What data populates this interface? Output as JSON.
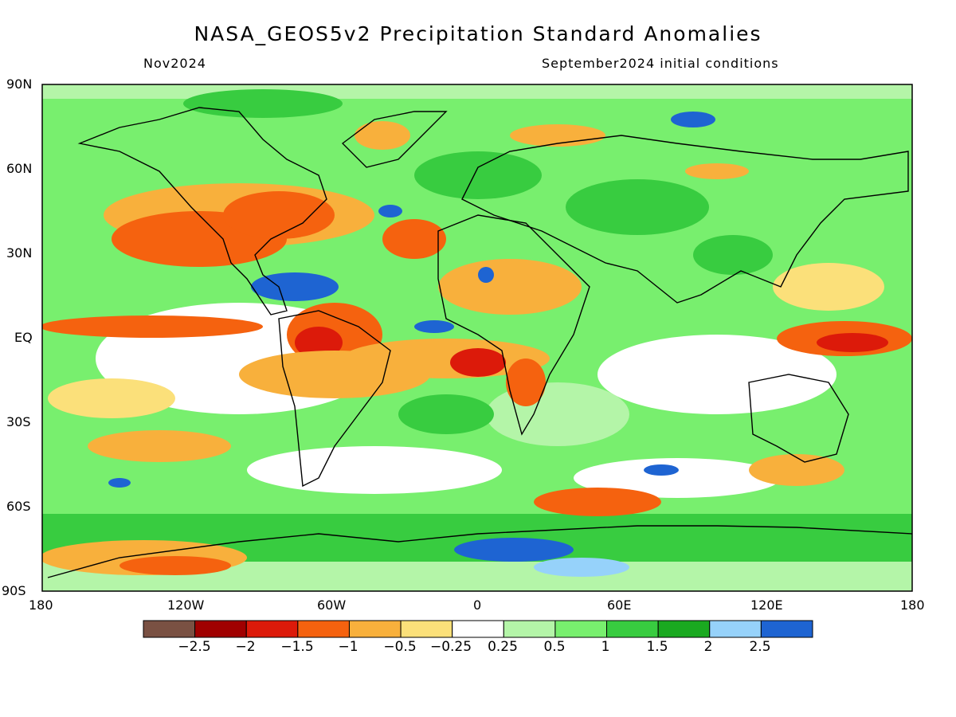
{
  "header": {
    "title": "NASA_GEOS5v2 Precipitation Standard Anomalies",
    "month": "Nov2024",
    "init": "September2024 initial conditions"
  },
  "axes": {
    "lat_labels": [
      "90N",
      "60N",
      "30N",
      "EQ",
      "30S",
      "60S",
      "90S"
    ],
    "lon_labels": [
      "180",
      "120W",
      "60W",
      "0",
      "60E",
      "120E",
      "180"
    ]
  },
  "colorbar": {
    "labels": [
      "−2.5",
      "−2",
      "−1.5",
      "−1",
      "−0.5",
      "−0.25",
      "0.25",
      "0.5",
      "1",
      "1.5",
      "2",
      "2.5"
    ],
    "colors": [
      "#7a5143",
      "#a00000",
      "#dc1a0a",
      "#f5620f",
      "#f8b03c",
      "#fbe07a",
      "#ffffff",
      "#b4f5a8",
      "#78ef6e",
      "#38cc40",
      "#1aa920",
      "#96d2fa",
      "#1e64d2"
    ]
  }
}
